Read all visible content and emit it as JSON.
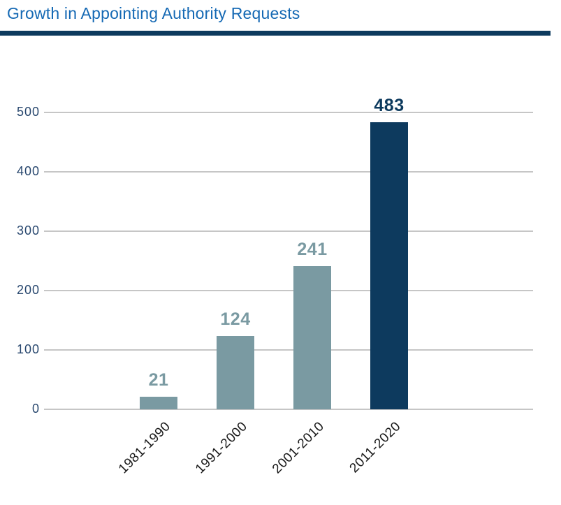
{
  "page": {
    "title": "Growth in Appointing Authority Requests"
  },
  "colors": {
    "title_text": "#1569b4",
    "rule_navy": "#0d3a5e",
    "gridline": "#c6c6c6",
    "y_axis_label": "#29486f",
    "x_axis_label": "#1a1a1a",
    "bar_slate": "#7a9aa2",
    "bar_navy": "#0d3a5e"
  },
  "chart_data": {
    "type": "bar",
    "title": "Growth in Appointing Authority Requests",
    "categories": [
      "1981-1990",
      "1991-2000",
      "2001-2010",
      "2011-2020"
    ],
    "values": [
      21,
      124,
      241,
      483
    ],
    "data_labels": [
      "21",
      "124",
      "241",
      "483"
    ],
    "bar_colors": [
      "#7a9aa2",
      "#7a9aa2",
      "#7a9aa2",
      "#0d3a5e"
    ],
    "label_colors": [
      "#7a9aa2",
      "#7a9aa2",
      "#7a9aa2",
      "#0d3a5e"
    ],
    "yticks": [
      0,
      100,
      200,
      300,
      400,
      500
    ],
    "ylim": [
      0,
      500
    ],
    "xlabel": "",
    "ylabel": "",
    "grid": "horizontal-gridlines",
    "legend": "none",
    "x_tick_rotation_deg": 45
  }
}
